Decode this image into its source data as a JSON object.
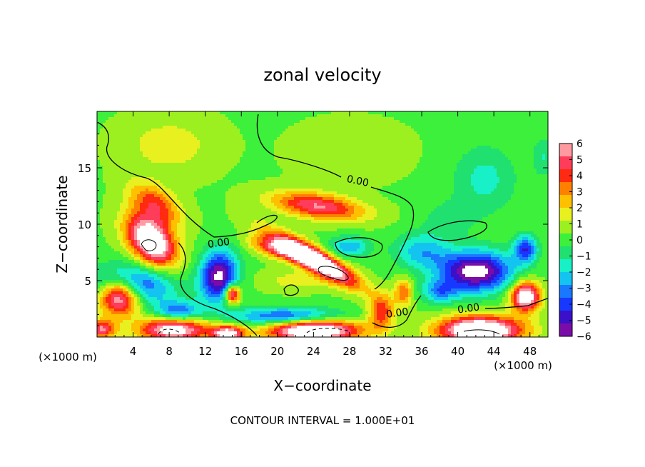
{
  "chart_data": {
    "type": "heatmap",
    "title": "zonal velocity",
    "xlabel": "X−coordinate",
    "ylabel": "Z−coordinate",
    "x_unit_left": "(×1000 m)",
    "x_unit_right": "(×1000 m)",
    "footer": "CONTOUR INTERVAL = 1.000E+01",
    "xlim": [
      0,
      50
    ],
    "ylim": [
      0,
      20
    ],
    "x_ticks": [
      4,
      8,
      12,
      16,
      20,
      24,
      28,
      32,
      36,
      40,
      44,
      48
    ],
    "y_ticks": [
      5,
      10,
      15
    ],
    "colorbar": {
      "ticks": [
        6,
        5,
        4,
        3,
        2,
        1,
        0,
        -1,
        -2,
        -3,
        -4,
        -5,
        -6
      ],
      "tick_labels": [
        "6",
        "5",
        "4",
        "3",
        "2",
        "1",
        "0",
        "−1",
        "−2",
        "−3",
        "−4",
        "−5",
        "−6"
      ],
      "range": [
        -6,
        6
      ],
      "colors": [
        "#7a0da8",
        "#3a10c8",
        "#1638ff",
        "#1a78ff",
        "#14c4f0",
        "#18f0c8",
        "#20e070",
        "#3cf03c",
        "#9cf020",
        "#e8f020",
        "#ffc000",
        "#ff8000",
        "#ff2a10",
        "#ff3c5a",
        "#ff9aa0"
      ]
    },
    "contour_labels": [
      {
        "text": "0.00",
        "x": 13.5,
        "y": 8.3
      },
      {
        "text": "0.00",
        "x": 28.9,
        "y": 13.8
      },
      {
        "text": "0.00",
        "x": 33.3,
        "y": 2.1
      },
      {
        "text": "0.00",
        "x": 41.2,
        "y": 2.5
      }
    ],
    "features": [
      {
        "x": 6,
        "y": 8.5,
        "value": 8,
        "sx": 3.0,
        "sy": 1.9,
        "rot": -35
      },
      {
        "x": 6.5,
        "y": 11.8,
        "value": 3.6,
        "sx": 3.0,
        "sy": 1.5,
        "rot": -25
      },
      {
        "x": 24.5,
        "y": 11.6,
        "value": 5.0,
        "sx": 5.0,
        "sy": 1.1,
        "rot": -6
      },
      {
        "x": 24,
        "y": 6.9,
        "value": 9,
        "sx": 5.0,
        "sy": 1.0,
        "rot": -24
      },
      {
        "x": 20,
        "y": 7.8,
        "value": 4.0,
        "sx": 3.0,
        "sy": 0.8,
        "rot": -12
      },
      {
        "x": 2.5,
        "y": 3.6,
        "value": 8,
        "sx": 2.3,
        "sy": 1.6,
        "rot": 0
      },
      {
        "x": 0.5,
        "y": 0.7,
        "value": 5,
        "sx": 1.5,
        "sy": 0.8,
        "rot": 0
      },
      {
        "x": 8.5,
        "y": 0.7,
        "value": 7,
        "sx": 3.8,
        "sy": 1.1,
        "rot": 0
      },
      {
        "x": 15,
        "y": 3.8,
        "value": 6.5,
        "sx": 0.8,
        "sy": 0.8,
        "rot": 0
      },
      {
        "x": 14.5,
        "y": 0.3,
        "value": 6.5,
        "sx": 1.8,
        "sy": 0.7,
        "rot": 0
      },
      {
        "x": 24,
        "y": 0.6,
        "value": 8.5,
        "sx": 5.0,
        "sy": 1.0,
        "rot": 0
      },
      {
        "x": 42.5,
        "y": 0.6,
        "value": 9,
        "sx": 4.5,
        "sy": 1.2,
        "rot": 0
      },
      {
        "x": 47.5,
        "y": 3.6,
        "value": 7.5,
        "sx": 1.6,
        "sy": 1.3,
        "rot": 0
      },
      {
        "x": 31.5,
        "y": 2.2,
        "value": 4.0,
        "sx": 1.4,
        "sy": 1.5,
        "rot": 0
      },
      {
        "x": 34,
        "y": 4.0,
        "value": 3.2,
        "sx": 1.0,
        "sy": 1.2,
        "rot": 0
      },
      {
        "x": 13.5,
        "y": 5.4,
        "value": -6.5,
        "sx": 2.0,
        "sy": 2.3,
        "rot": -20
      },
      {
        "x": 4,
        "y": 4.6,
        "value": -5,
        "sx": 4.5,
        "sy": 1.8,
        "rot": 0
      },
      {
        "x": 9,
        "y": 2.2,
        "value": -4.0,
        "sx": 2.5,
        "sy": 1.0,
        "rot": 0
      },
      {
        "x": 21,
        "y": 1.8,
        "value": -4.5,
        "sx": 6.0,
        "sy": 0.8,
        "rot": 0
      },
      {
        "x": 28,
        "y": 8.0,
        "value": -3.0,
        "sx": 2.2,
        "sy": 0.9,
        "rot": 0
      },
      {
        "x": 42,
        "y": 5.8,
        "value": -7,
        "sx": 4.0,
        "sy": 1.8,
        "rot": 0
      },
      {
        "x": 47.5,
        "y": 7.8,
        "value": -4.5,
        "sx": 1.3,
        "sy": 1.2,
        "rot": 0
      },
      {
        "x": 36,
        "y": 7.6,
        "value": -2.8,
        "sx": 3.0,
        "sy": 1.6,
        "rot": 0
      },
      {
        "x": 38,
        "y": 4.0,
        "value": -3.0,
        "sx": 2.0,
        "sy": 1.0,
        "rot": 0
      },
      {
        "x": 43,
        "y": 14,
        "value": -1.8,
        "sx": 3.5,
        "sy": 3.0,
        "rot": 0
      },
      {
        "x": 39,
        "y": 10.5,
        "value": -1.1,
        "sx": 3.0,
        "sy": 1.6,
        "rot": 0
      },
      {
        "x": 49.5,
        "y": 16,
        "value": -1.5,
        "sx": 1.2,
        "sy": 1.8,
        "rot": 0
      },
      {
        "x": 8,
        "y": 17,
        "value": 1.4,
        "sx": 5.0,
        "sy": 2.5,
        "rot": 0
      },
      {
        "x": 28,
        "y": 16.5,
        "value": 0.7,
        "sx": 6.0,
        "sy": 2.5,
        "rot": 0
      },
      {
        "x": 22,
        "y": 5.0,
        "value": 1.2,
        "sx": 4.0,
        "sy": 0.9,
        "rot": 0
      }
    ]
  }
}
